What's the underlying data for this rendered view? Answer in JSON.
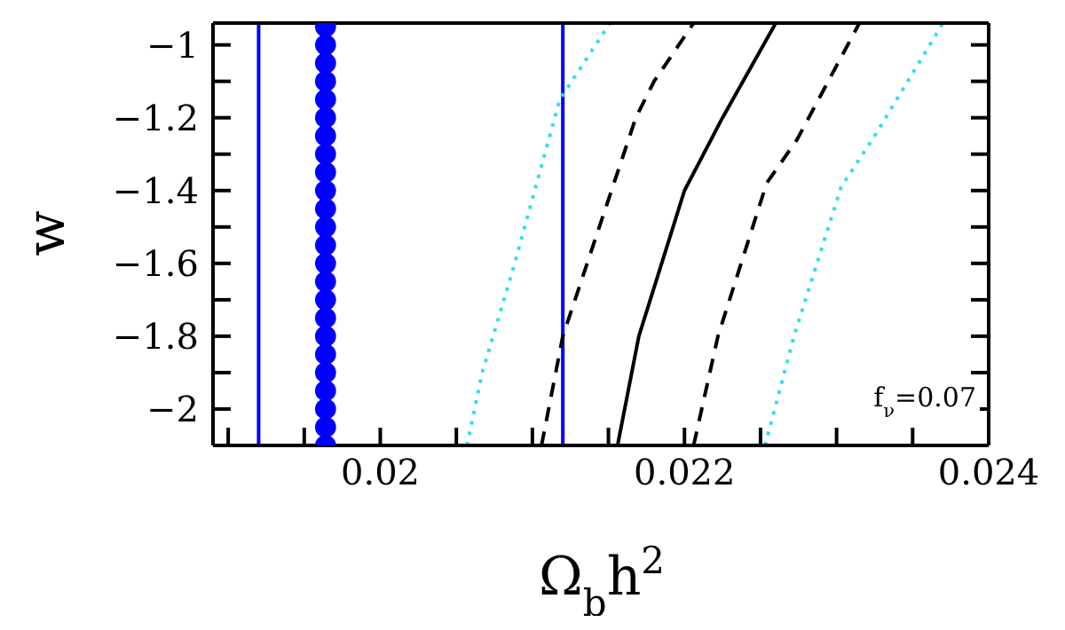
{
  "chart_data": {
    "type": "line",
    "xlabel": "Ω$_{b}$h$^{2}$",
    "ylabel": "w",
    "xlim": [
      0.0189,
      0.024
    ],
    "xticks": [
      {
        "value": 0.019,
        "label": null
      },
      {
        "value": 0.0195,
        "label": null
      },
      0.02,
      {
        "value": 0.0205,
        "label": null
      },
      {
        "value": 0.021,
        "label": null
      },
      {
        "value": 0.0215,
        "label": null
      },
      0.022,
      {
        "value": 0.0225,
        "label": null
      },
      {
        "value": 0.023,
        "label": null
      },
      {
        "value": 0.0235,
        "label": null
      },
      0.024
    ],
    "ylim": [
      -2.1,
      -0.94
    ],
    "yticks": [
      -2,
      {
        "value": -1.9,
        "label": null
      },
      -1.8,
      {
        "value": -1.7,
        "label": null
      },
      -1.6,
      {
        "value": -1.5,
        "label": null
      },
      -1.4,
      {
        "value": -1.3,
        "label": null
      },
      -1.2,
      {
        "value": -1.1,
        "label": null
      },
      -1
    ],
    "series": [
      {
        "color": "#000000",
        "line_style": "solid",
        "marker": "none",
        "x": [
          0.02156,
          0.0217,
          0.022,
          0.02225,
          0.0226
        ],
        "values": [
          -2.1,
          -1.8,
          -1.4,
          -1.2,
          -0.94
        ]
      },
      {
        "type": "line",
        "color": "#000000",
        "line_style": "dashed",
        "marker": "none",
        "x": [
          0.02106,
          0.0212,
          0.02168,
          0.0218,
          0.02206
        ],
        "values": [
          -2.1,
          -1.8,
          -1.2,
          -1.1,
          -0.94
        ]
      },
      {
        "type": "line",
        "color": "#000000",
        "line_style": "dashed",
        "marker": "none",
        "x": [
          0.02206,
          0.02222,
          0.02254,
          0.02274,
          0.02315
        ],
        "values": [
          -2.1,
          -1.8,
          -1.38,
          -1.26,
          -0.94
        ]
      },
      {
        "type": "line",
        "color": "#33ddee",
        "line_style": "dotted",
        "marker": "none",
        "x": [
          0.02057,
          0.02067,
          0.02087,
          0.02118,
          0.02151
        ],
        "values": [
          -2.1,
          -1.9,
          -1.62,
          -1.15,
          -0.94
        ]
      },
      {
        "type": "line",
        "color": "#33ddee",
        "line_style": "dotted",
        "marker": "none",
        "x": [
          0.02253,
          0.02272,
          0.02303,
          0.02325,
          0.0237
        ],
        "values": [
          -2.1,
          -1.8,
          -1.39,
          -1.25,
          -0.94
        ]
      },
      {
        "type": "scatter",
        "color": "#0000ff",
        "marker": "circle",
        "x": [
          0.01964,
          0.01964,
          0.01964,
          0.01964,
          0.01964,
          0.01964,
          0.01964,
          0.01964,
          0.01964,
          0.01964,
          0.01964,
          0.01964,
          0.01964,
          0.01964,
          0.01964,
          0.01964,
          0.01964,
          0.01964,
          0.01964,
          0.01964,
          0.01964,
          0.01964,
          0.01964,
          0.01964
        ],
        "values": [
          -0.95,
          -1.0,
          -1.05,
          -1.1,
          -1.15,
          -1.2,
          -1.25,
          -1.3,
          -1.35,
          -1.4,
          -1.45,
          -1.5,
          -1.55,
          -1.6,
          -1.65,
          -1.7,
          -1.75,
          -1.8,
          -1.85,
          -1.9,
          -1.95,
          -2.0,
          -2.05,
          -2.1
        ]
      }
    ],
    "ref_lines": [
      {
        "axis": "x",
        "value": 0.0192,
        "color": "#0000ff"
      },
      {
        "axis": "x",
        "value": 0.0212,
        "color": "#0000ff"
      }
    ],
    "annotations": [
      "f$_{ν}$=0.07"
    ]
  }
}
